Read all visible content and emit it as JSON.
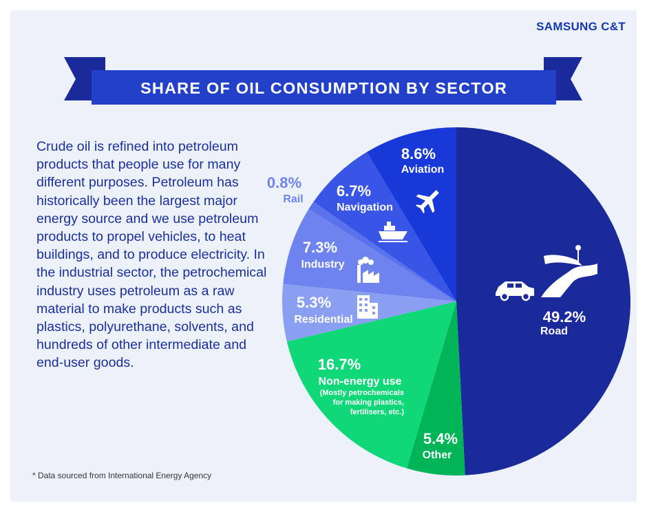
{
  "brand": "SAMSUNG C&T",
  "title": "SHARE OF OIL CONSUMPTION BY SECTOR",
  "body_text": "Crude oil is refined into petroleum products that people use for many different purposes. Petroleum has historically been the largest major energy source and we use petroleum products to propel vehicles, to heat buildings, and to produce electricity. In the industrial sector, the petrochemical industry uses petroleum as a raw material to make products such as plastics, polyurethane, solvents, and hundreds of other intermediate and end-user goods.",
  "footnote": "* Data sourced from International Energy Agency",
  "colors": {
    "road": "#1a2a9b",
    "other": "#00b558",
    "non_energy": "#10d878",
    "residential": "#8a9ff2",
    "industry": "#6e83ee",
    "rail": "#5a72ec",
    "navigation": "#3855e6",
    "aviation": "#1838d8"
  },
  "chart_data": {
    "type": "pie",
    "slices": [
      {
        "label": "Road",
        "value_label": "49.2%",
        "value": 49.2,
        "color": "#1a2a9b",
        "icon": "car-road-icon"
      },
      {
        "label": "Other",
        "value_label": "5.4%",
        "value": 5.4,
        "color": "#00b558"
      },
      {
        "label": "Non-energy use",
        "value_label": "16.7%",
        "value": 16.7,
        "note_lines": [
          "(Mostly petrochemicals",
          "for making plastics,",
          "fertilisers, etc.)"
        ],
        "color": "#10d878"
      },
      {
        "label": "Residential",
        "value_label": "5.3%",
        "value": 5.3,
        "color": "#8a9ff2",
        "icon": "building-icon"
      },
      {
        "label": "Industry",
        "value_label": "7.3%",
        "value": 7.3,
        "color": "#6e83ee",
        "icon": "factory-icon"
      },
      {
        "label": "Rail",
        "value_label": "0.8%",
        "value": 0.8,
        "color": "#5a72ec"
      },
      {
        "label": "Navigation",
        "value_label": "6.7%",
        "value": 6.7,
        "color": "#3855e6",
        "icon": "ship-icon"
      },
      {
        "label": "Aviation",
        "value_label": "8.6%",
        "value": 8.6,
        "color": "#1838d8",
        "icon": "airplane-icon"
      }
    ]
  }
}
